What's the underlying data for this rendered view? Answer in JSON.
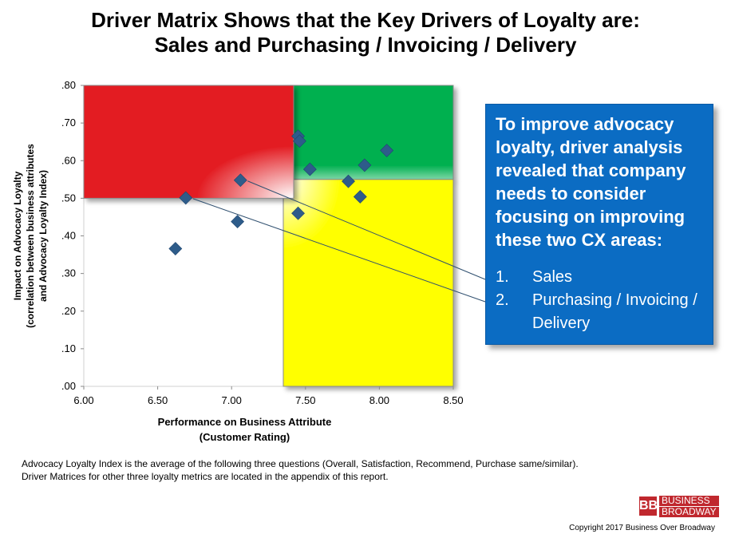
{
  "title": {
    "line1": "Driver Matrix Shows that the Key Drivers of Loyalty are:",
    "line2": "Sales and Purchasing / Invoicing / Delivery"
  },
  "chart_data": {
    "type": "scatter",
    "title": "Driver Matrix Shows that the Key Drivers of Loyalty are: Sales and Purchasing / Invoicing / Delivery",
    "xlabel_line1": "Performance on Business Attribute",
    "xlabel_line2": "(Customer  Rating)",
    "ylabel_line1": "Impact on Advocacy Loyalty",
    "ylabel_line2": "(correlation between business attributes",
    "ylabel_line3": "and Advocacy Loyalty Index)",
    "xlim": [
      6.0,
      8.5
    ],
    "ylim": [
      0.0,
      0.8
    ],
    "x_ticks": [
      "6.00",
      "6.50",
      "7.00",
      "7.50",
      "8.00",
      "8.50"
    ],
    "y_ticks": [
      ".00",
      ".10",
      ".20",
      ".30",
      ".40",
      ".50",
      ".60",
      ".70",
      ".80"
    ],
    "grid": false,
    "quadrants": [
      {
        "name": "red",
        "color": "#e31e24",
        "x": [
          6.0,
          7.42
        ],
        "y": [
          0.5,
          0.8
        ]
      },
      {
        "name": "green",
        "color": "#00b050",
        "x": [
          7.35,
          8.5
        ],
        "y": [
          0.55,
          0.8
        ]
      },
      {
        "name": "yellow",
        "color": "#ffff00",
        "x": [
          7.35,
          8.5
        ],
        "y": [
          0.0,
          0.55
        ]
      }
    ],
    "marker_color": "#2e5c8a",
    "points": [
      {
        "x": 6.62,
        "y": 0.366
      },
      {
        "x": 6.69,
        "y": 0.501
      },
      {
        "x": 7.04,
        "y": 0.438
      },
      {
        "x": 7.06,
        "y": 0.548
      },
      {
        "x": 7.45,
        "y": 0.665
      },
      {
        "x": 7.46,
        "y": 0.652
      },
      {
        "x": 7.45,
        "y": 0.46
      },
      {
        "x": 7.53,
        "y": 0.577
      },
      {
        "x": 7.79,
        "y": 0.545
      },
      {
        "x": 7.87,
        "y": 0.504
      },
      {
        "x": 7.9,
        "y": 0.588
      },
      {
        "x": 8.05,
        "y": 0.627
      }
    ],
    "highlighted_points": [
      {
        "x": 7.06,
        "y": 0.548
      },
      {
        "x": 6.69,
        "y": 0.501
      }
    ]
  },
  "callout": {
    "heading": "To improve advocacy loyalty, driver analysis revealed that company needs to consider focusing on improving these two CX areas:",
    "items": [
      {
        "num": "1.",
        "text": "Sales"
      },
      {
        "num": "2.",
        "text": "Purchasing / Invoicing / Delivery"
      }
    ],
    "color": "#0b6cc3"
  },
  "footnote": {
    "line1": "Advocacy Loyalty Index is the average of the following three questions (Overall, Satisfaction, Recommend, Purchase same/similar).",
    "line2": "Driver Matrices for other three loyalty metrics are located in the appendix of this report."
  },
  "logo": {
    "mark": "BB",
    "line1": "BUSINESS",
    "line2": "BROADWAY"
  },
  "copyright": "Copyright 2017 Business Over Broadway"
}
